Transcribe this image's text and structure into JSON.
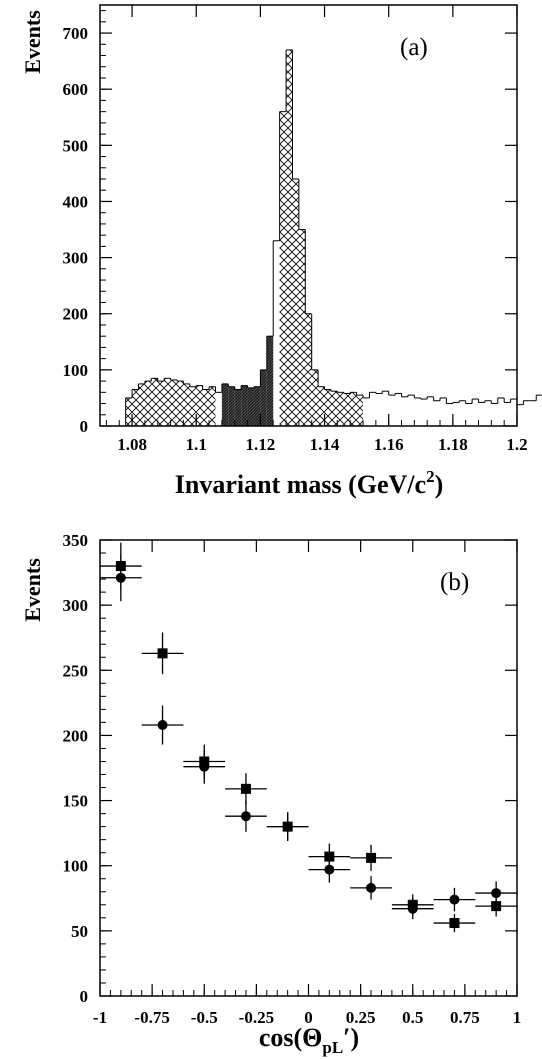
{
  "chart_data": [
    {
      "type": "histogram",
      "panel_label": "(a)",
      "ylabel": "Events",
      "xlabel_main": "Invariant mass (GeV/c",
      "xlabel_sup": "2",
      "xlabel_tail": ")",
      "xlim": [
        1.07,
        1.2
      ],
      "ylim": [
        0,
        750
      ],
      "x_ticks": [
        "1.08",
        "1.1",
        "1.12",
        "1.14",
        "1.16",
        "1.18",
        "1.2"
      ],
      "y_ticks": [
        "0",
        "100",
        "200",
        "300",
        "400",
        "500",
        "600",
        "700"
      ],
      "bin_width": 0.002,
      "x_start": 1.078,
      "values": [
        50,
        65,
        75,
        80,
        85,
        80,
        85,
        82,
        80,
        75,
        70,
        72,
        65,
        70,
        60,
        75,
        70,
        65,
        72,
        68,
        70,
        100,
        160,
        330,
        560,
        670,
        440,
        350,
        200,
        100,
        70,
        65,
        62,
        60,
        58,
        60,
        55,
        50,
        60,
        58,
        62,
        55,
        58,
        52,
        55,
        50,
        48,
        52,
        45,
        50,
        40,
        42,
        45,
        40,
        48,
        42,
        45,
        40,
        50,
        42,
        48,
        38,
        45,
        45,
        55,
        50
      ],
      "sidebands": [
        [
          1.078,
          1.106
        ],
        [
          1.126,
          1.152
        ]
      ],
      "signal_region": [
        1.108,
        1.124
      ]
    },
    {
      "type": "scatter",
      "panel_label": "(b)",
      "ylabel": "Events",
      "xlabel_main": "cos(Θ",
      "xlabel_sub": "pL",
      "xlabel_tail": "′)",
      "xlim": [
        -1,
        1
      ],
      "ylim": [
        0,
        350
      ],
      "x_ticks": [
        "-1",
        "-0.75",
        "-0.5",
        "-0.25",
        "0",
        "0.25",
        "0.5",
        "0.75",
        "1"
      ],
      "y_ticks": [
        "0",
        "50",
        "100",
        "150",
        "200",
        "250",
        "300",
        "350"
      ],
      "series": [
        {
          "marker": "square",
          "x": [
            -0.9,
            -0.7,
            -0.5,
            -0.3,
            -0.1,
            0.1,
            0.3,
            0.5,
            0.7,
            0.9
          ],
          "y": [
            330,
            263,
            180,
            159,
            130,
            107,
            106,
            70,
            56,
            69
          ],
          "yerr": [
            18,
            16,
            13,
            12,
            11,
            10,
            10,
            8,
            7,
            8
          ]
        },
        {
          "marker": "circle",
          "x": [
            -0.9,
            -0.7,
            -0.5,
            -0.3,
            -0.1,
            0.1,
            0.3,
            0.5,
            0.7,
            0.9
          ],
          "y": [
            321,
            208,
            176,
            138,
            130,
            97,
            83,
            67,
            74,
            79
          ],
          "yerr": [
            18,
            15,
            13,
            12,
            11,
            10,
            9,
            8,
            9,
            9
          ]
        }
      ],
      "xerr": 0.1
    }
  ]
}
